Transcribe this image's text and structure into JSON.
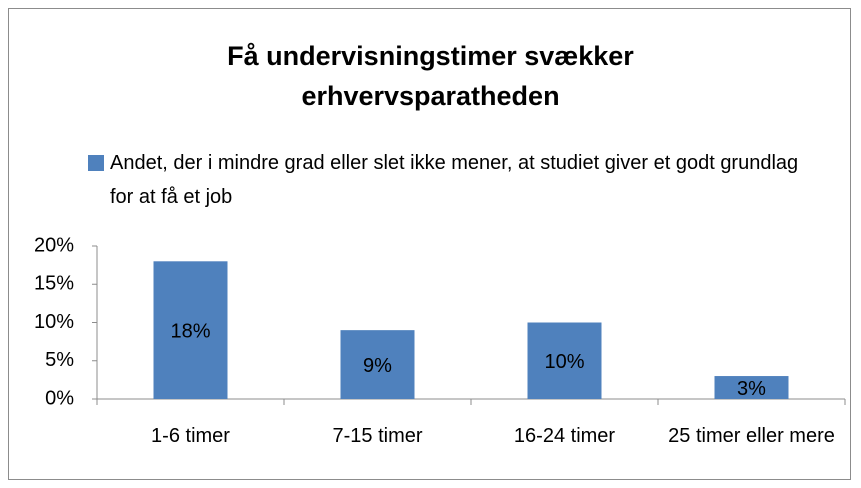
{
  "chart_data": {
    "type": "bar",
    "title": "Få undervisningstimer svækker erhvervsparatheden",
    "categories": [
      "1-6 timer",
      "7-15 timer",
      "16-24 timer",
      "25 timer eller mere"
    ],
    "series": [
      {
        "name": "Andet, der i mindre grad eller slet ikke mener, at studiet giver et godt grundlag for at få et job",
        "color": "#4f81bd",
        "values": [
          18,
          9,
          10,
          3
        ],
        "value_labels": [
          "18%",
          "9%",
          "10%",
          "3%"
        ]
      }
    ],
    "ylim": [
      0,
      20
    ],
    "yticks": [
      {
        "value": 0,
        "label": "0%"
      },
      {
        "value": 5,
        "label": "5%"
      },
      {
        "value": 10,
        "label": "10%"
      },
      {
        "value": 15,
        "label": "15%"
      },
      {
        "value": 20,
        "label": "20%"
      }
    ],
    "grid": false,
    "legend": "top"
  }
}
